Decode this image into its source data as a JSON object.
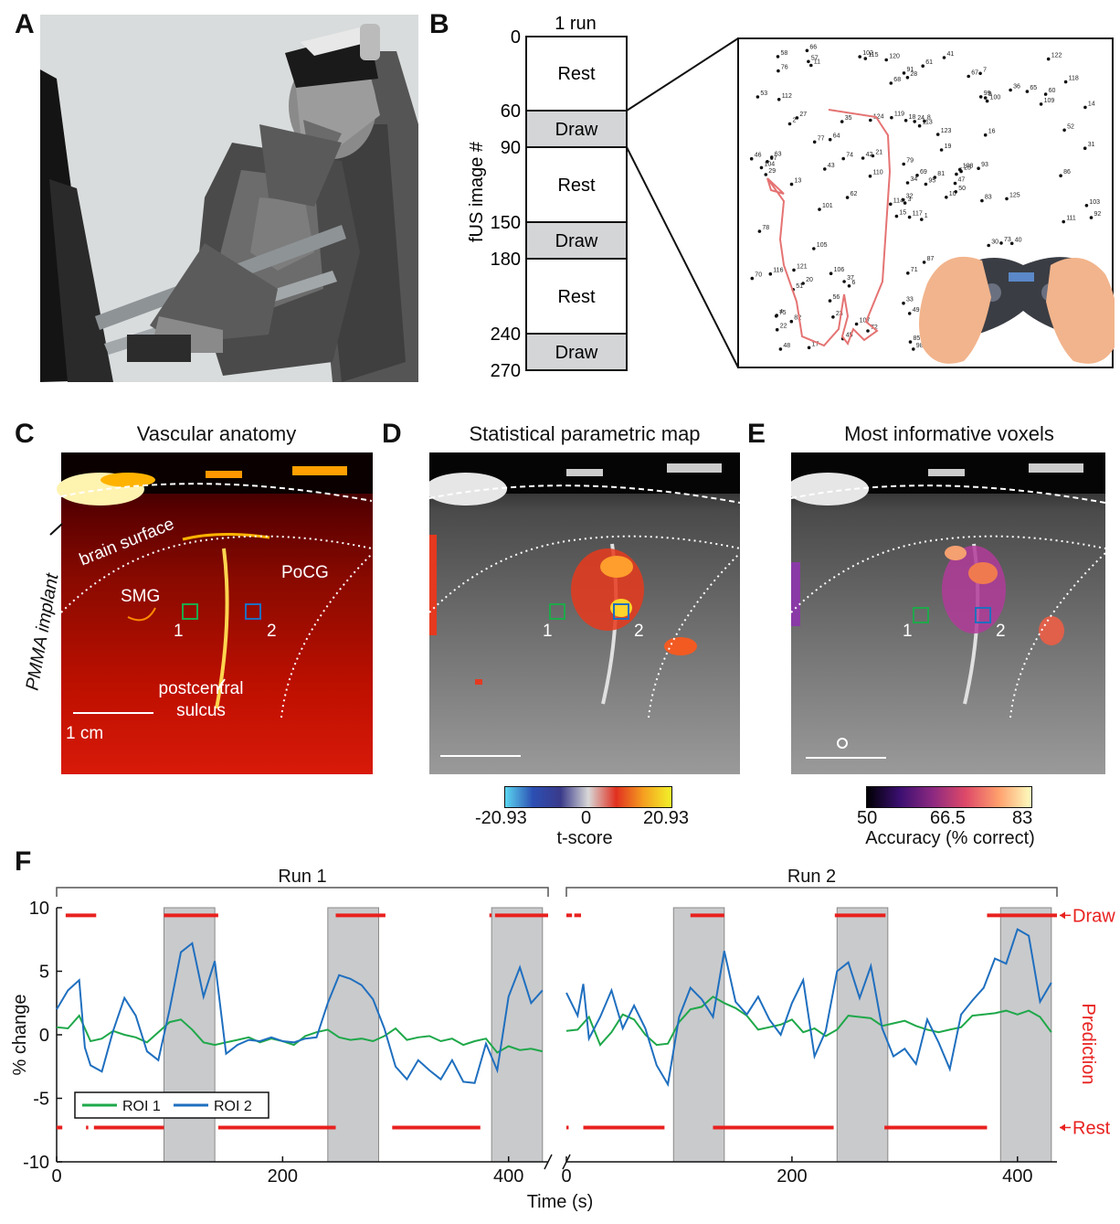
{
  "panels": {
    "A": {
      "label": "A"
    },
    "B": {
      "label": "B",
      "run_label": "1 run",
      "ylabel": "fUS image #",
      "ticks": [
        "0",
        "60",
        "90",
        "150",
        "180",
        "240",
        "270"
      ],
      "blocks": [
        "Rest",
        "Draw",
        "Rest",
        "Draw",
        "Rest",
        "Draw"
      ],
      "dots": [
        "1",
        "2",
        "3",
        "4",
        "5",
        "6",
        "7",
        "8",
        "9",
        "10",
        "11",
        "12",
        "13",
        "14",
        "15",
        "16",
        "17",
        "18",
        "19",
        "20",
        "21",
        "22",
        "23",
        "24",
        "25",
        "26",
        "27",
        "28",
        "29",
        "30",
        "31",
        "32",
        "33",
        "34",
        "35",
        "36",
        "37",
        "38",
        "39",
        "40",
        "41",
        "42",
        "43",
        "44",
        "45",
        "46",
        "47",
        "48",
        "49",
        "50",
        "51",
        "52",
        "53",
        "54",
        "55",
        "56",
        "57",
        "58",
        "59",
        "60",
        "61",
        "62",
        "63",
        "64",
        "65",
        "66",
        "67",
        "68",
        "69",
        "70",
        "71",
        "72",
        "73",
        "74",
        "75",
        "76",
        "77",
        "78",
        "79",
        "80",
        "81",
        "82",
        "83",
        "84",
        "85",
        "86",
        "87",
        "88",
        "89",
        "90",
        "91",
        "92",
        "93",
        "94",
        "95",
        "96",
        "97",
        "98",
        "99",
        "100",
        "101",
        "102",
        "103",
        "104",
        "105",
        "106",
        "107",
        "108",
        "109",
        "110",
        "111",
        "112",
        "113",
        "114",
        "115",
        "116",
        "117",
        "118",
        "119",
        "120",
        "121",
        "122",
        "123",
        "124",
        "125"
      ]
    },
    "C": {
      "label": "C",
      "title": "Vascular anatomy",
      "annotations": {
        "implant": "PMMA implant",
        "brain_surface": "brain surface",
        "smg": "SMG",
        "pocg": "PoCG",
        "sulcus_1": "postcentral",
        "sulcus_2": "sulcus",
        "roi1": "1",
        "roi2": "2",
        "scalebar": "1 cm"
      }
    },
    "D": {
      "label": "D",
      "title": "Statistical parametric map",
      "roi1": "1",
      "roi2": "2",
      "colorbar": {
        "ticks": [
          "-20.93",
          "0",
          "20.93"
        ],
        "label": "t-score"
      }
    },
    "E": {
      "label": "E",
      "title": "Most informative voxels",
      "roi1": "1",
      "roi2": "2",
      "colorbar": {
        "ticks": [
          "50",
          "66.5",
          "83"
        ],
        "label": "Accuracy (% correct)"
      }
    },
    "F": {
      "label": "F"
    }
  },
  "colors": {
    "roi1": "#1fa84a",
    "roi2": "#1f6fbf",
    "prediction": "#e8211f",
    "task_shade": "#c9cacc"
  },
  "chart_data": {
    "type": "line",
    "runs": [
      "Run 1",
      "Run 2"
    ],
    "xlabel": "Time (s)",
    "ylabel": "% change",
    "right_label": "Prediction",
    "pred_labels": {
      "draw": "Draw",
      "rest": "Rest"
    },
    "xlim": [
      0,
      435
    ],
    "ylim": [
      -10,
      10
    ],
    "xticks": [
      0,
      200,
      400
    ],
    "yticks": [
      10,
      5,
      0,
      -5,
      -10
    ],
    "draw_blocks_s": [
      [
        95,
        140
      ],
      [
        240,
        285
      ],
      [
        385,
        430
      ]
    ],
    "legend": [
      "ROI 1",
      "ROI 2"
    ],
    "series": [
      {
        "name": "ROI 1",
        "run": "Run 1",
        "x": [
          0,
          10,
          20,
          30,
          40,
          50,
          60,
          70,
          80,
          90,
          100,
          110,
          120,
          130,
          140,
          150,
          160,
          170,
          180,
          190,
          200,
          210,
          220,
          230,
          240,
          250,
          260,
          270,
          280,
          290,
          300,
          310,
          320,
          330,
          340,
          350,
          360,
          370,
          380,
          390,
          400,
          410,
          420,
          430
        ],
        "values": [
          0.6,
          0.5,
          1.5,
          -0.5,
          -0.3,
          0.3,
          0.0,
          -0.2,
          -0.6,
          0.2,
          1.0,
          1.2,
          0.4,
          -0.6,
          -0.8,
          -0.6,
          -0.4,
          -0.2,
          -0.6,
          -0.3,
          -0.5,
          -0.8,
          -0.1,
          0.2,
          0.4,
          -0.2,
          -0.4,
          -0.3,
          -0.5,
          -0.1,
          0.5,
          -0.4,
          -0.2,
          -0.1,
          -0.5,
          -0.3,
          -0.8,
          -0.5,
          -0.3,
          -1.4,
          -0.9,
          -1.2,
          -1.1,
          -1.3
        ]
      },
      {
        "name": "ROI 2",
        "run": "Run 1",
        "x": [
          0,
          10,
          20,
          25,
          30,
          40,
          50,
          60,
          70,
          80,
          90,
          100,
          110,
          120,
          130,
          140,
          150,
          160,
          170,
          180,
          190,
          200,
          210,
          220,
          230,
          240,
          250,
          260,
          270,
          280,
          290,
          300,
          310,
          320,
          330,
          340,
          350,
          360,
          370,
          380,
          390,
          400,
          410,
          420,
          430
        ],
        "values": [
          2.0,
          3.5,
          4.3,
          -1.0,
          -2.4,
          -2.9,
          0.3,
          2.9,
          1.5,
          -1.3,
          -2.0,
          2.0,
          6.5,
          7.2,
          3.0,
          5.8,
          -1.5,
          -0.8,
          -0.4,
          -0.5,
          -0.2,
          -0.5,
          -0.6,
          -0.3,
          -0.2,
          2.5,
          4.7,
          4.4,
          3.9,
          2.8,
          0.5,
          -2.5,
          -3.5,
          -2.0,
          -2.8,
          -3.5,
          -2.0,
          -3.7,
          -3.8,
          -0.7,
          -2.8,
          3.0,
          5.3,
          2.5,
          3.5
        ]
      },
      {
        "name": "ROI 1",
        "run": "Run 2",
        "x": [
          0,
          10,
          20,
          30,
          40,
          50,
          60,
          70,
          80,
          90,
          100,
          110,
          120,
          130,
          140,
          150,
          160,
          170,
          180,
          190,
          200,
          210,
          220,
          230,
          240,
          250,
          260,
          270,
          280,
          290,
          300,
          310,
          320,
          330,
          340,
          350,
          360,
          370,
          380,
          390,
          400,
          410,
          420,
          430
        ],
        "values": [
          0.3,
          0.4,
          1.4,
          -0.8,
          0.2,
          1.6,
          1.2,
          0.0,
          -0.8,
          -0.7,
          1.0,
          2.0,
          2.2,
          3.0,
          2.5,
          2.1,
          1.5,
          0.4,
          0.6,
          0.8,
          1.2,
          0.2,
          0.5,
          -0.1,
          0.4,
          1.5,
          1.4,
          1.3,
          0.7,
          0.9,
          1.1,
          0.7,
          0.4,
          0.2,
          0.4,
          0.6,
          1.5,
          1.6,
          1.7,
          1.9,
          1.6,
          1.9,
          1.4,
          0.2
        ]
      },
      {
        "name": "ROI 2",
        "run": "Run 2",
        "x": [
          0,
          10,
          15,
          20,
          30,
          40,
          50,
          60,
          70,
          80,
          90,
          100,
          110,
          120,
          130,
          140,
          150,
          160,
          170,
          180,
          190,
          200,
          210,
          220,
          230,
          240,
          250,
          260,
          270,
          280,
          290,
          300,
          310,
          320,
          330,
          340,
          350,
          360,
          370,
          380,
          390,
          400,
          410,
          420,
          430
        ],
        "values": [
          3.3,
          1.5,
          4.0,
          -0.3,
          1.4,
          3.5,
          0.5,
          2.3,
          0.5,
          -2.4,
          -3.9,
          1.4,
          3.7,
          2.8,
          1.4,
          6.6,
          2.6,
          1.6,
          3.0,
          1.2,
          0.0,
          2.5,
          4.3,
          -1.7,
          0.3,
          5.0,
          5.7,
          2.9,
          5.4,
          0.5,
          -1.7,
          -1.1,
          -2.3,
          1.2,
          -0.6,
          -2.7,
          1.6,
          2.7,
          3.7,
          6.0,
          5.6,
          8.3,
          7.8,
          2.6,
          4.1
        ]
      }
    ],
    "prediction": {
      "draw_y": 9.4,
      "rest_y": -7.3,
      "run1_draw_x": [
        [
          8,
          35
        ],
        [
          95,
          143
        ],
        [
          247,
          291
        ],
        [
          383,
          385
        ],
        [
          388,
          435
        ]
      ],
      "run1_rest_x": [
        [
          0,
          5
        ],
        [
          26,
          28
        ],
        [
          33,
          95
        ],
        [
          143,
          247
        ],
        [
          297,
          375
        ]
      ],
      "run2_draw_x": [
        [
          0,
          5
        ],
        [
          7,
          13
        ],
        [
          110,
          140
        ],
        [
          238,
          283
        ],
        [
          373,
          435
        ]
      ],
      "run2_rest_x": [
        [
          0,
          2
        ],
        [
          15,
          87
        ],
        [
          130,
          237
        ],
        [
          282,
          373
        ]
      ]
    }
  }
}
